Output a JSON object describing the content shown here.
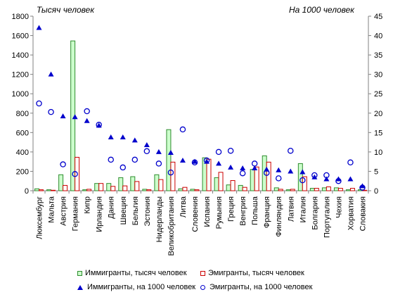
{
  "chart_data": {
    "type": "bar",
    "left_axis_title": "Тысяч человек",
    "right_axis_title": "На 1000 человек",
    "ylim_left": [
      0,
      1800
    ],
    "ylim_right": [
      0,
      45
    ],
    "yticks_left": [
      "0",
      "200",
      "400",
      "600",
      "800",
      "1000",
      "1200",
      "1400",
      "1600",
      "1800"
    ],
    "yticks_right": [
      "0",
      "5",
      "10",
      "15",
      "20",
      "25",
      "30",
      "35",
      "40",
      "45"
    ],
    "grid": false,
    "legend_position": "bottom",
    "categories": [
      "Люксембург",
      "Мальта",
      "Австрия",
      "Германия",
      "Кипр",
      "Ирландия",
      "Дания",
      "Швеция",
      "Бельгия",
      "Эстония",
      "Нидерланды",
      "Великобритания",
      "Литва",
      "Словения",
      "Испания",
      "Румыния",
      "Греция",
      "Венгрия",
      "Польша",
      "Франция",
      "Финляндия",
      "Латвия",
      "Италия",
      "Болгария",
      "Португалия",
      "Чехия",
      "Хорватия",
      "Словакия"
    ],
    "series": [
      {
        "name": "Иммигранты, тысяч человек",
        "kind": "bar",
        "axis": "left",
        "color": "#ccffcc",
        "stroke": "#2e8b2e",
        "values": [
          20,
          10,
          165,
          1545,
          10,
          75,
          75,
          135,
          145,
          15,
          165,
          630,
          20,
          15,
          340,
          135,
          60,
          55,
          220,
          360,
          30,
          10,
          280,
          25,
          30,
          30,
          10,
          10
        ]
      },
      {
        "name": "Эмигранты, тысяч человек",
        "kind": "bar",
        "axis": "left",
        "color": "#ffffff",
        "stroke": "#cc0000",
        "values": [
          10,
          5,
          55,
          345,
          15,
          75,
          45,
          50,
          95,
          10,
          115,
          295,
          35,
          10,
          325,
          190,
          105,
          35,
          245,
          295,
          15,
          15,
          145,
          25,
          40,
          25,
          25,
          5
        ]
      },
      {
        "name": "Иммигранты, на 1000 человек",
        "kind": "marker",
        "marker": "triangle",
        "axis": "right",
        "color": "#0000cc",
        "values": [
          42,
          30,
          19.2,
          19,
          18,
          16.8,
          13.8,
          13.8,
          13,
          11.8,
          10,
          9.8,
          7.8,
          7.5,
          7.5,
          7,
          6,
          5.8,
          5.8,
          5.5,
          5.3,
          5,
          4.8,
          3.5,
          3,
          3,
          3,
          1.2
        ]
      },
      {
        "name": "Эмигранты, на 1000 человек",
        "kind": "marker",
        "marker": "circle",
        "axis": "right",
        "color": "#0000cc",
        "values": [
          22.5,
          20.3,
          6.8,
          4.3,
          20.5,
          17,
          8,
          6,
          8,
          10.2,
          7,
          4.7,
          15.8,
          7.3,
          7.8,
          10,
          10.3,
          4.5,
          7,
          4.6,
          3.2,
          10.3,
          2.7,
          4,
          4,
          2.5,
          7.3,
          0.8
        ]
      }
    ]
  }
}
